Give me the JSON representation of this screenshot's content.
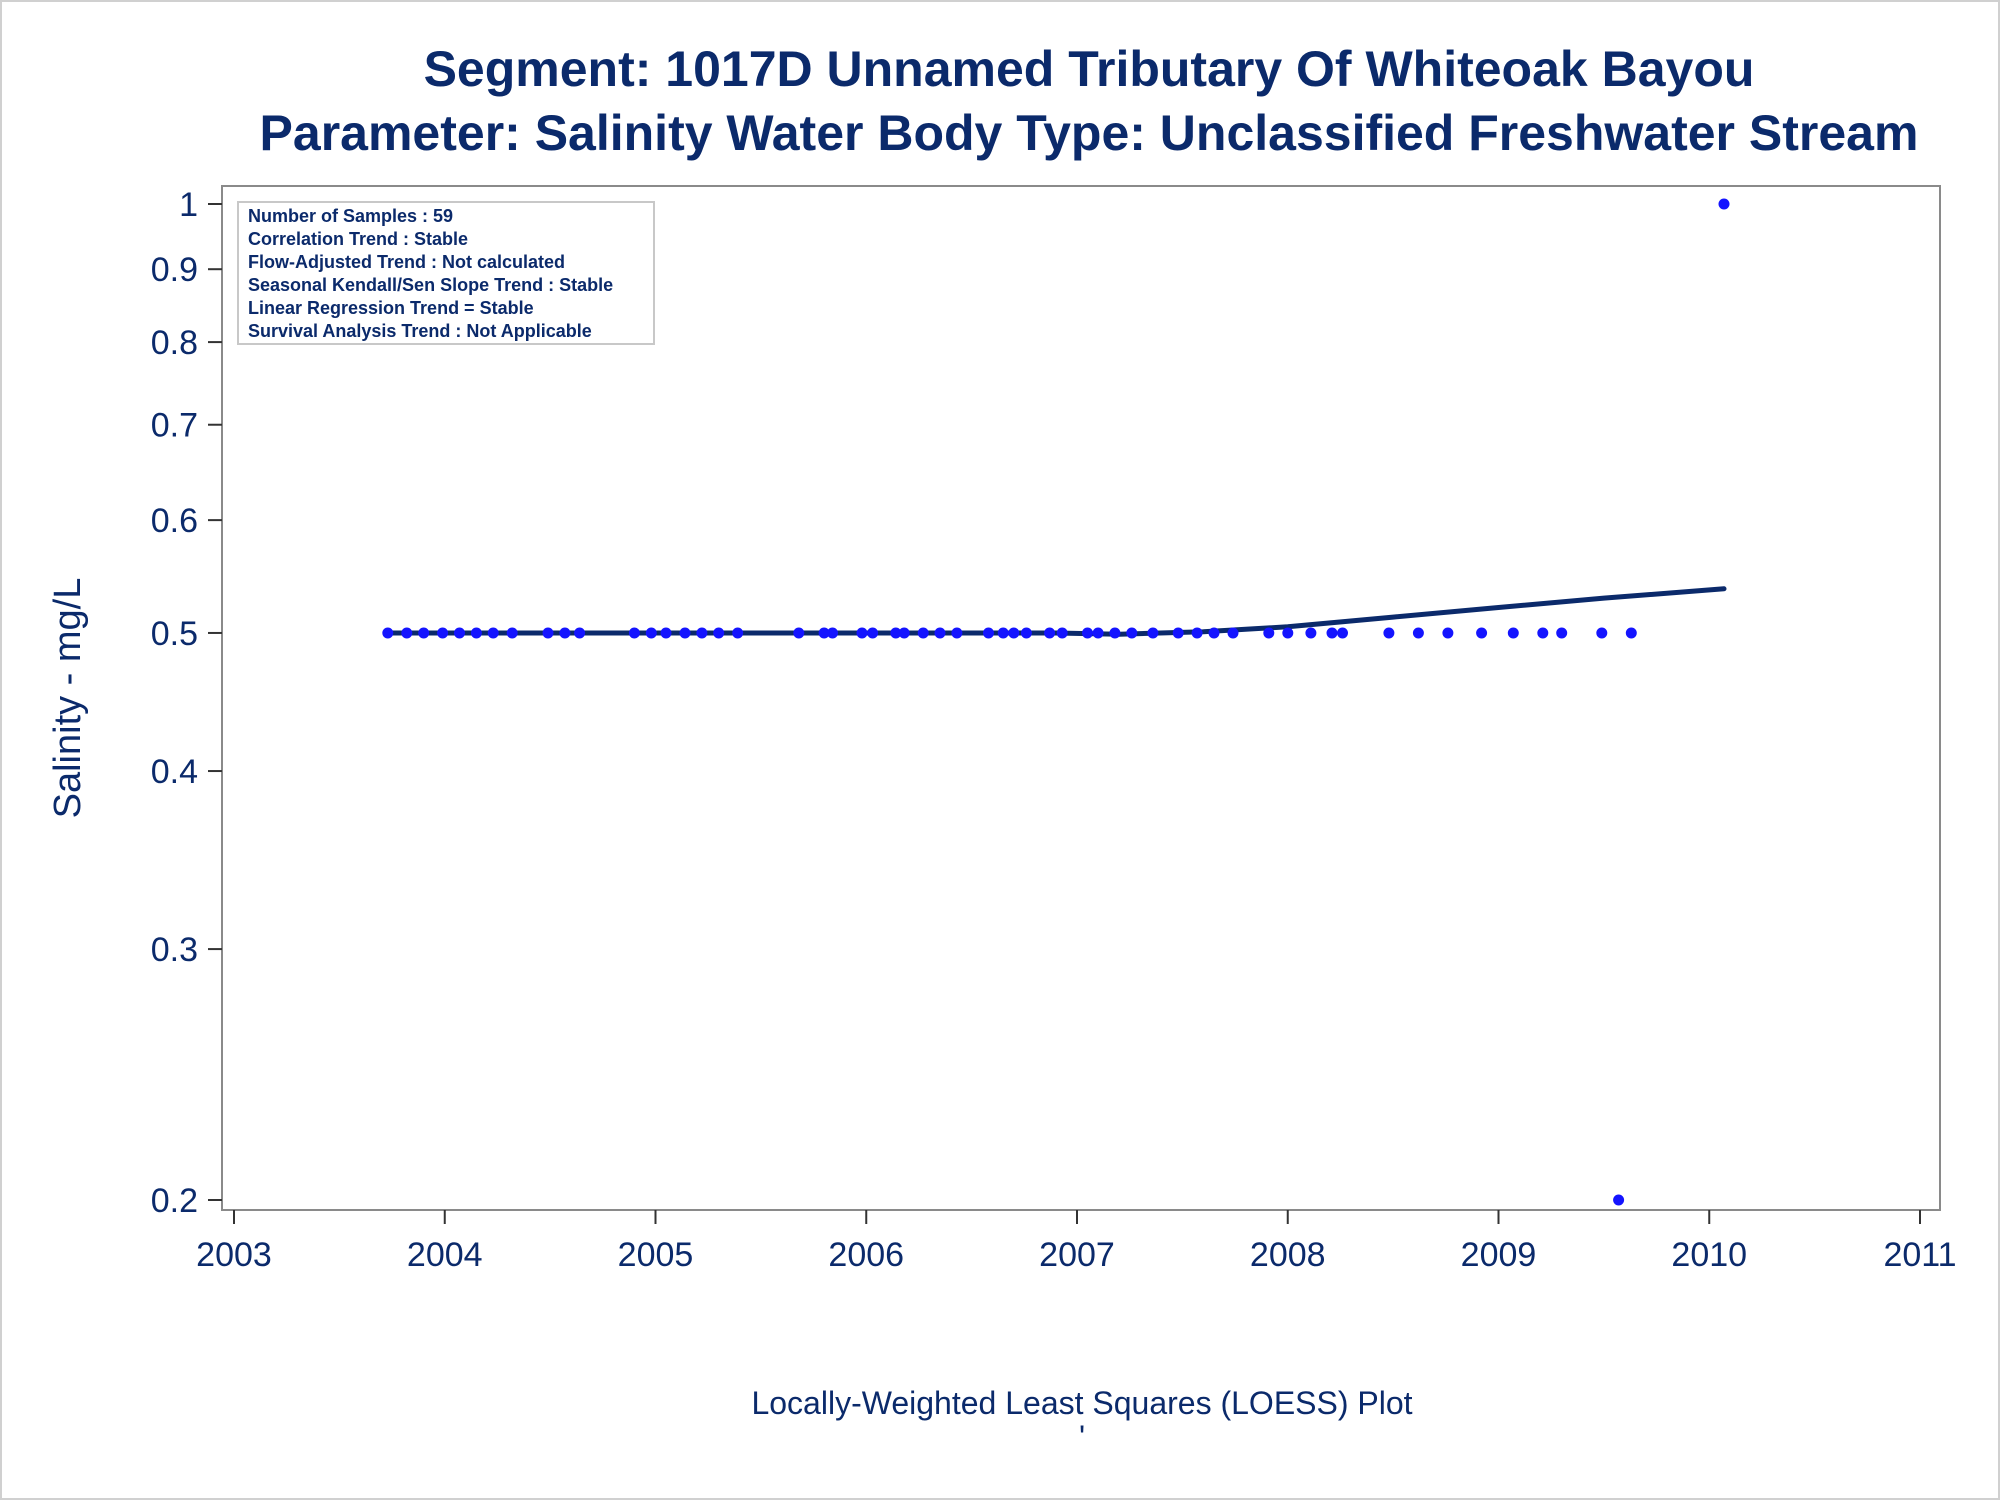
{
  "chart_data": {
    "type": "scatter",
    "title": "Segment: 1017D  Unnamed Tributary Of Whiteoak Bayou",
    "subtitle": "Parameter: Salinity   Water Body Type: Unclassified Freshwater Stream",
    "xlabel": "",
    "ylabel": "Salinity - mg/L",
    "footer": "Locally-Weighted Least Squares (LOESS) Plot",
    "footer_mark": "'",
    "xlim": [
      2003,
      2011
    ],
    "ylim": [
      0.2,
      1
    ],
    "y_scale": "log",
    "x_ticks": [
      2003,
      2004,
      2005,
      2006,
      2007,
      2008,
      2009,
      2010,
      2011
    ],
    "y_ticks": [
      0.2,
      0.3,
      0.4,
      0.5,
      0.6,
      0.7,
      0.8,
      0.9,
      1
    ],
    "y_tick_labels": [
      "0.2",
      "0.3",
      "0.4",
      "0.5",
      "0.6",
      "0.7",
      "0.8",
      "0.9",
      "1"
    ],
    "grid": false,
    "stats_box": {
      "placement": "top-left",
      "lines": [
        "Number of Samples : 59",
        "Correlation Trend : Stable",
        "Flow-Adjusted Trend : Not calculated",
        "Seasonal Kendall/Sen Slope Trend : Stable",
        "Linear Regression Trend = Stable",
        "Survival Analysis Trend : Not Applicable"
      ]
    },
    "series": [
      {
        "kind": "points",
        "color": "#1414ff",
        "x": [
          2003.73,
          2003.82,
          2003.9,
          2003.99,
          2004.07,
          2004.15,
          2004.23,
          2004.32,
          2004.49,
          2004.57,
          2004.64,
          2004.9,
          2004.98,
          2005.05,
          2005.14,
          2005.22,
          2005.3,
          2005.39,
          2005.68,
          2005.8,
          2005.84,
          2005.98,
          2006.03,
          2006.14,
          2006.18,
          2006.27,
          2006.35,
          2006.43,
          2006.58,
          2006.65,
          2006.7,
          2006.76,
          2006.87,
          2006.93,
          2007.05,
          2007.1,
          2007.18,
          2007.26,
          2007.36,
          2007.48,
          2007.57,
          2007.65,
          2007.74,
          2007.91,
          2008.0,
          2008.11,
          2008.21,
          2008.26,
          2008.48,
          2008.62,
          2008.76,
          2008.92,
          2009.07,
          2009.21,
          2009.3,
          2009.49,
          2009.57,
          2009.63,
          2010.07
        ],
        "y": [
          0.5,
          0.5,
          0.5,
          0.5,
          0.5,
          0.5,
          0.5,
          0.5,
          0.5,
          0.5,
          0.5,
          0.5,
          0.5,
          0.5,
          0.5,
          0.5,
          0.5,
          0.5,
          0.5,
          0.5,
          0.5,
          0.5,
          0.5,
          0.5,
          0.5,
          0.5,
          0.5,
          0.5,
          0.5,
          0.5,
          0.5,
          0.5,
          0.5,
          0.5,
          0.5,
          0.5,
          0.5,
          0.5,
          0.5,
          0.5,
          0.5,
          0.5,
          0.5,
          0.5,
          0.5,
          0.5,
          0.5,
          0.5,
          0.5,
          0.5,
          0.5,
          0.5,
          0.5,
          0.5,
          0.5,
          0.5,
          0.2,
          0.5,
          1.0
        ]
      },
      {
        "kind": "loess",
        "color": "#0b2a6b",
        "x": [
          2003.73,
          2004.5,
          2005.5,
          2006.5,
          2006.9,
          2007.2,
          2007.6,
          2008.0,
          2008.5,
          2009.0,
          2009.5,
          2010.07
        ],
        "y": [
          0.5,
          0.5,
          0.5,
          0.5,
          0.5,
          0.499,
          0.501,
          0.505,
          0.513,
          0.521,
          0.529,
          0.537
        ]
      }
    ]
  }
}
